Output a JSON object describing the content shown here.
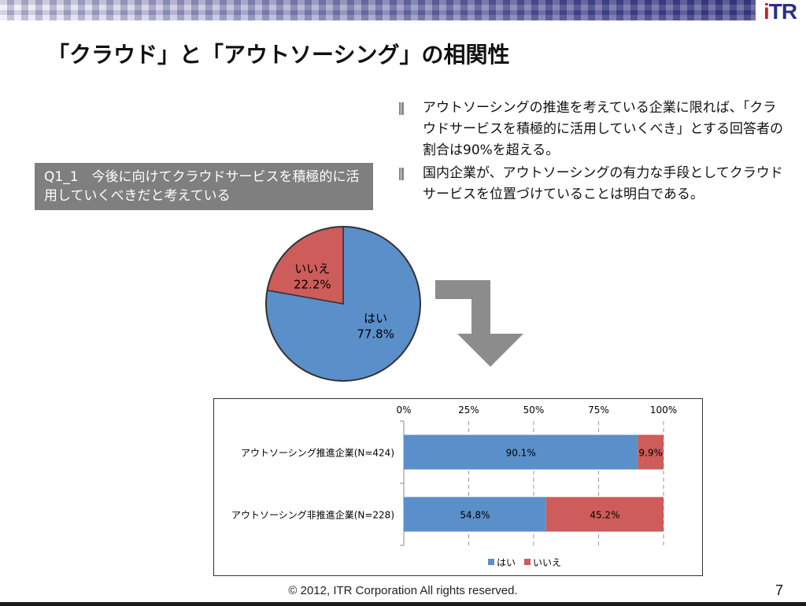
{
  "header": {
    "logo_prefix": "i",
    "logo_rest": "TR",
    "title": "「クラウド」と「アウトソーシング」の相関性"
  },
  "bullets": [
    "アウトソーシングの推進を考えている企業に限れば、「クラウドサービスを積極的に活用していくべき」とする回答者の割合は90%を超える。",
    "国内企業が、アウトソーシングの有力な手段としてクラウドサービスを位置づけていることは明白である。"
  ],
  "question_box": "Q1_1　今後に向けてクラウドサービスを積極的に活用していくべきだと考えている",
  "colors": {
    "yes": "#5b8fc9",
    "no": "#cd5c5a",
    "question_bg": "#7f7f7f",
    "arrow": "#8c8c8c"
  },
  "chart_data": [
    {
      "type": "pie",
      "title": "",
      "slices": [
        {
          "label": "はい",
          "value": 77.8,
          "label_text": "77.8%"
        },
        {
          "label": "いいえ",
          "value": 22.2,
          "label_text": "22.2%"
        }
      ]
    },
    {
      "type": "bar",
      "orientation": "horizontal",
      "stacked": true,
      "categories": [
        "アウトソーシング推進企業(N=424)",
        "アウトソーシング非推進企業(N=228)"
      ],
      "series": [
        {
          "name": "はい",
          "values": [
            90.1,
            54.8
          ],
          "labels": [
            "90.1%",
            "54.8%"
          ]
        },
        {
          "name": "いいえ",
          "values": [
            9.9,
            45.2
          ],
          "labels": [
            "9.9%",
            "45.2%"
          ]
        }
      ],
      "xlim": [
        0,
        100
      ],
      "xticks": [
        "0%",
        "25%",
        "50%",
        "75%",
        "100%"
      ],
      "grid": true,
      "legend": "bottom"
    }
  ],
  "footer": {
    "copyright": "© 2012, ITR Corporation  All rights reserved.",
    "page_number": "7"
  }
}
